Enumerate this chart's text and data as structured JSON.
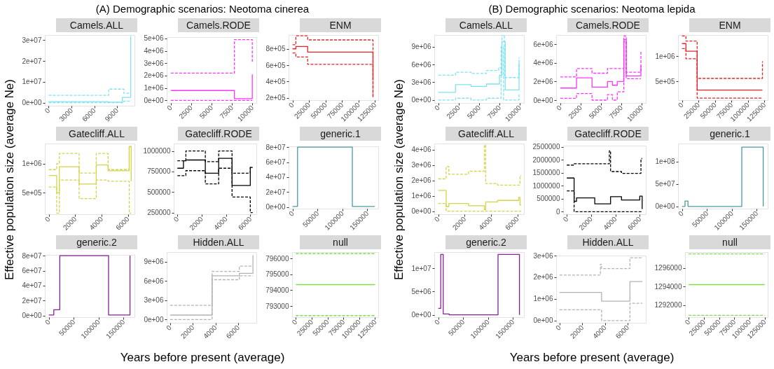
{
  "chart_data": [
    {
      "type": "step",
      "title": "Camels.ALL",
      "annotations": [
        "(A) Demographic scenarios: Neotoma cinerea"
      ],
      "xlabel": "Years before present (average)",
      "ylabel": "Effective population size (average Ne)",
      "xlim": [
        -500,
        11300
      ],
      "xticks": [
        0,
        3000,
        6000,
        9000
      ],
      "ylim": [
        -1500000,
        32500000
      ],
      "yticks": [
        {
          "value": 0,
          "label": "0e+00"
        },
        {
          "value": 10000000,
          "label": "1e+07"
        },
        {
          "value": 20000000,
          "label": "2e+07"
        },
        {
          "value": 30000000,
          "label": "3e+07"
        }
      ],
      "series": [
        {
          "color": "#7fe3ef",
          "line_style": "solid",
          "x": [
            0,
            7800,
            9700,
            10800,
            10800
          ],
          "values": [
            500000,
            200000,
            2500000,
            2500000,
            32000000
          ]
        },
        {
          "color": "#7fe3ef",
          "line_style": "dashed",
          "x": [
            0,
            9900,
            10800
          ],
          "values": [
            0,
            700000,
            700000
          ]
        },
        {
          "color": "#7fe3ef",
          "line_style": "dashed",
          "x": [
            0,
            7900,
            9900,
            10800
          ],
          "values": [
            3500000,
            6500000,
            4500000,
            4500000
          ]
        }
      ]
    },
    {
      "type": "step",
      "title": "Camels.RODE",
      "xlim": [
        -500,
        10500
      ],
      "xticks": [
        0,
        2500,
        5000,
        7500,
        10000
      ],
      "ylim": [
        -200000,
        5100000
      ],
      "yticks": [
        {
          "value": 0,
          "label": "0e+00"
        },
        {
          "value": 1000000,
          "label": "1e+06"
        },
        {
          "value": 2000000,
          "label": "2e+06"
        },
        {
          "value": 3000000,
          "label": "3e+06"
        },
        {
          "value": 4000000,
          "label": "4e+06"
        },
        {
          "value": 5000000,
          "label": "5e+06"
        }
      ],
      "series": [
        {
          "color": "#ff33ff",
          "line_style": "solid",
          "x": [
            0,
            7800,
            10000,
            10000
          ],
          "values": [
            800000,
            150000,
            150000,
            2100000
          ]
        },
        {
          "color": "#ff33ff",
          "line_style": "dashed",
          "x": [
            0,
            10000
          ],
          "values": [
            0,
            0
          ]
        },
        {
          "color": "#ff33ff",
          "line_style": "dashed",
          "x": [
            0,
            7800,
            10000,
            10000
          ],
          "values": [
            2200000,
            4900000,
            4900000,
            3000000
          ]
        }
      ]
    },
    {
      "type": "step",
      "title": "ENM",
      "xlim": [
        -6000,
        130000
      ],
      "xticks": [
        0,
        25000,
        50000,
        75000,
        100000,
        125000
      ],
      "ylim": [
        170000,
        970000
      ],
      "yticks": [
        {
          "value": 200000,
          "label": "2e+05"
        },
        {
          "value": 400000,
          "label": "4e+05"
        },
        {
          "value": 600000,
          "label": "6e+05"
        },
        {
          "value": 800000,
          "label": "8e+05"
        }
      ],
      "series": [
        {
          "color": "#ee2222",
          "line_style": "solid",
          "x": [
            0,
            5000,
            23000,
            122000,
            122000
          ],
          "values": [
            800000,
            830000,
            760000,
            760000,
            420000
          ]
        },
        {
          "color": "#ee2222",
          "line_style": "dashed",
          "x": [
            0,
            5000,
            23000,
            122000,
            122000
          ],
          "values": [
            750000,
            700000,
            610000,
            610000,
            200000
          ]
        },
        {
          "color": "#ee2222",
          "line_style": "dashed",
          "x": [
            0,
            5000,
            23000,
            122000,
            122000
          ],
          "values": [
            850000,
            960000,
            910000,
            910000,
            220000
          ]
        }
      ]
    },
    {
      "type": "step",
      "title": "Gatecliff.ALL",
      "xlim": [
        -300,
        6500
      ],
      "xticks": [
        0,
        2000,
        4000,
        6000
      ],
      "ylim": [
        130000,
        1350000
      ],
      "yticks": [
        {
          "value": 500000,
          "label": "5e+05"
        },
        {
          "value": 1000000,
          "label": "1e+06"
        }
      ],
      "series": [
        {
          "color": "#d4d44a",
          "line_style": "solid",
          "x": [
            0,
            600,
            800,
            2300,
            3600,
            4500,
            6100,
            6250
          ],
          "values": [
            800000,
            500000,
            950000,
            650000,
            980000,
            880000,
            1300000,
            700000
          ]
        },
        {
          "color": "#d4d44a",
          "line_style": "dashed",
          "x": [
            0,
            600,
            800,
            2300,
            3600,
            4500,
            6100,
            6250
          ],
          "values": [
            600000,
            150000,
            720000,
            400000,
            720000,
            700000,
            150000,
            150000
          ]
        },
        {
          "color": "#d4d44a",
          "line_style": "dashed",
          "x": [
            0,
            600,
            800,
            2300,
            3600,
            4500,
            6100,
            6250
          ],
          "values": [
            900000,
            1000000,
            1180000,
            840000,
            1180000,
            900000,
            1300000,
            1300000
          ]
        }
      ]
    },
    {
      "type": "step",
      "title": "Gatecliff.RODE",
      "xlim": [
        -300,
        6500
      ],
      "xticks": [
        0,
        2000,
        4000,
        6000
      ],
      "ylim": [
        230000,
        1090000
      ],
      "yticks": [
        250000,
        500000,
        750000,
        1000000
      ],
      "series": [
        {
          "color": "#000000",
          "line_style": "solid",
          "x": [
            0,
            500,
            700,
            2300,
            3400,
            4500,
            6000,
            6200
          ],
          "values": [
            790000,
            880000,
            890000,
            730000,
            910000,
            580000,
            800000,
            800000
          ]
        },
        {
          "color": "#000000",
          "line_style": "dashed",
          "x": [
            0,
            700,
            2300,
            3400,
            4500,
            6000,
            6200
          ],
          "values": [
            700000,
            760000,
            600000,
            790000,
            440000,
            250000,
            250000
          ]
        },
        {
          "color": "#000000",
          "line_style": "dashed",
          "x": [
            0,
            700,
            2300,
            3400,
            4500,
            6000,
            6200
          ],
          "values": [
            880000,
            1000000,
            870000,
            1000000,
            730000,
            800000,
            800000
          ]
        }
      ]
    },
    {
      "type": "step",
      "title": "generic.1",
      "xlim": [
        -8000,
        172000
      ],
      "xticks": [
        0,
        50000,
        100000,
        150000
      ],
      "ylim": [
        -2000000,
        81000000
      ],
      "yticks": [
        {
          "value": 0,
          "label": "0e+00"
        },
        {
          "value": 20000000,
          "label": "2e+07"
        },
        {
          "value": 40000000,
          "label": "4e+07"
        },
        {
          "value": 60000000,
          "label": "6e+07"
        },
        {
          "value": 80000000,
          "label": "8e+07"
        }
      ],
      "series": [
        {
          "color": "#4b9aa3",
          "line_style": "solid",
          "x": [
            0,
            10000,
            120000,
            165000
          ],
          "values": [
            1000000,
            80000000,
            1000000,
            1000000
          ]
        }
      ]
    },
    {
      "type": "step",
      "title": "generic.2",
      "xlim": [
        -8000,
        172000
      ],
      "xticks": [
        0,
        50000,
        100000,
        150000
      ],
      "ylim": [
        -2000000,
        81000000
      ],
      "yticks": [
        {
          "value": 0,
          "label": "0e+00"
        },
        {
          "value": 20000000,
          "label": "2e+07"
        },
        {
          "value": 40000000,
          "label": "4e+07"
        },
        {
          "value": 60000000,
          "label": "6e+07"
        },
        {
          "value": 80000000,
          "label": "8e+07"
        }
      ],
      "series": [
        {
          "color": "#8a1f9a",
          "line_style": "solid",
          "x": [
            0,
            10000,
            22000,
            120000,
            163000,
            163000
          ],
          "values": [
            1000000,
            8000000,
            80000000,
            1000000,
            1000000,
            80000000
          ]
        }
      ]
    },
    {
      "type": "step",
      "title": "Hidden.ALL",
      "xlim": [
        -300,
        7600
      ],
      "xticks": [
        0,
        2000,
        4000,
        6000
      ],
      "ylim": [
        -500000,
        10500000
      ],
      "yticks": [
        {
          "value": 0,
          "label": "0e+00"
        },
        {
          "value": 3000000,
          "label": "3e+06"
        },
        {
          "value": 6000000,
          "label": "6e+06"
        },
        {
          "value": 9000000,
          "label": "9e+06"
        }
      ],
      "series": [
        {
          "color": "#b3b3b3",
          "line_style": "solid",
          "x": [
            0,
            3700,
            6100,
            7300,
            7300
          ],
          "values": [
            700000,
            6800000,
            7200000,
            7200000,
            10000000
          ]
        },
        {
          "color": "#b3b3b3",
          "line_style": "dashed",
          "x": [
            0,
            3700,
            6100,
            7300
          ],
          "values": [
            0,
            6200000,
            6800000,
            6800000
          ]
        },
        {
          "color": "#b3b3b3",
          "line_style": "dashed",
          "x": [
            0,
            3700,
            6100,
            7300
          ],
          "values": [
            2200000,
            7500000,
            8300000,
            8300000
          ]
        }
      ]
    },
    {
      "type": "step",
      "title": "null",
      "xlim": [
        -6000,
        130000
      ],
      "xticks": [
        0,
        25000,
        50000,
        75000,
        100000,
        125000
      ],
      "ylim": [
        792300,
        796400
      ],
      "yticks": [
        793000,
        794000,
        795000,
        796000
      ],
      "series": [
        {
          "color": "#7be048",
          "line_style": "solid",
          "x": [
            0,
            125000
          ],
          "values": [
            794350,
            794350
          ]
        },
        {
          "color": "#7be048",
          "line_style": "dashed",
          "x": [
            0,
            125000
          ],
          "values": [
            792400,
            792400
          ]
        },
        {
          "color": "#7be048",
          "line_style": "dashed",
          "x": [
            0,
            125000
          ],
          "values": [
            796300,
            796300
          ]
        }
      ]
    },
    {
      "type": "step",
      "title": "Camels.ALL",
      "annotations": [
        "(B) Demographic scenarios: Neotoma lepida"
      ],
      "xlabel": "Years before present (average)",
      "ylabel": "Effective population size (average Ne)",
      "xlim": [
        -500,
        10500
      ],
      "xticks": [
        0,
        2500,
        5000,
        7500,
        10000
      ],
      "ylim": [
        -500000,
        11000000
      ],
      "yticks": [
        {
          "value": 0,
          "label": "0e+00"
        },
        {
          "value": 3000000,
          "label": "3e+06"
        },
        {
          "value": 6000000,
          "label": "6e+06"
        },
        {
          "value": 9000000,
          "label": "9e+06"
        }
      ],
      "series": [
        {
          "color": "#7fe3ef",
          "line_style": "solid",
          "x": [
            0,
            2100,
            4000,
            5900,
            7500,
            7800,
            8200,
            9900,
            9900
          ],
          "values": [
            1300000,
            2600000,
            2300000,
            2700000,
            4200000,
            9900000,
            1700000,
            1700000,
            6300000
          ]
        },
        {
          "color": "#7fe3ef",
          "line_style": "dashed",
          "x": [
            0,
            2100,
            4000,
            5900,
            7700,
            8000,
            9900,
            9900
          ],
          "values": [
            0,
            300000,
            0,
            300000,
            9000000,
            0,
            0,
            1000000
          ]
        },
        {
          "color": "#7fe3ef",
          "line_style": "dashed",
          "x": [
            0,
            2100,
            4000,
            5900,
            7400,
            7800,
            8100,
            9900,
            9900
          ],
          "values": [
            4200000,
            4700000,
            4500000,
            5000000,
            5500000,
            11000000,
            3800000,
            3800000,
            7200000
          ]
        }
      ]
    },
    {
      "type": "step",
      "title": "Camels.RODE",
      "xlim": [
        -500,
        10500
      ],
      "xticks": [
        0,
        2500,
        5000,
        7500,
        10000
      ],
      "ylim": [
        -300000,
        7000000
      ],
      "yticks": [
        {
          "value": 0,
          "label": "0e+00"
        },
        {
          "value": 2000000,
          "label": "2e+06"
        },
        {
          "value": 4000000,
          "label": "4e+06"
        },
        {
          "value": 6000000,
          "label": "6e+06"
        }
      ],
      "series": [
        {
          "color": "#ff33ff",
          "line_style": "solid",
          "x": [
            0,
            2000,
            3900,
            5800,
            6400,
            7000,
            7800,
            8100,
            9900,
            9900
          ],
          "values": [
            1300000,
            2400000,
            1400000,
            2000000,
            1600000,
            2000000,
            6500000,
            2600000,
            2600000,
            3700000
          ]
        },
        {
          "color": "#ff33ff",
          "line_style": "dashed",
          "x": [
            0,
            2000,
            3900,
            5800,
            6400,
            7000,
            7800,
            8100,
            9900
          ],
          "values": [
            200000,
            700000,
            0,
            600000,
            0,
            900000,
            6300000,
            2300000,
            2300000
          ]
        },
        {
          "color": "#ff33ff",
          "line_style": "dashed",
          "x": [
            0,
            2000,
            3900,
            5800,
            7800,
            8100,
            9900,
            9900
          ],
          "values": [
            2500000,
            3400000,
            2900000,
            3400000,
            6900000,
            3000000,
            3000000,
            5300000
          ]
        }
      ]
    },
    {
      "type": "step",
      "title": "ENM",
      "xlim": [
        -6000,
        130000
      ],
      "xticks": [
        0,
        25000,
        50000,
        75000,
        100000,
        125000
      ],
      "ylim": [
        130000,
        1420000
      ],
      "yticks": [
        {
          "value": 500000,
          "label": "5e+05"
        },
        {
          "value": 1000000,
          "label": "1e+06"
        }
      ],
      "series": [
        {
          "color": "#ee2222",
          "line_style": "solid",
          "x": [
            0,
            6000,
            23000,
            122000
          ],
          "values": [
            1250000,
            1100000,
            330000,
            330000
          ]
        },
        {
          "color": "#ee2222",
          "line_style": "dashed",
          "x": [
            0,
            6000,
            23000,
            122000
          ],
          "values": [
            1150000,
            950000,
            170000,
            170000
          ]
        },
        {
          "color": "#ee2222",
          "line_style": "dashed",
          "x": [
            0,
            6000,
            23000,
            122000,
            122000
          ],
          "values": [
            1400000,
            1300000,
            560000,
            560000,
            900000
          ]
        }
      ]
    },
    {
      "type": "step",
      "title": "Gatecliff.ALL",
      "xlim": [
        -300,
        6500
      ],
      "xticks": [
        0,
        2000,
        4000,
        6000
      ],
      "ylim": [
        -200000,
        4400000
      ],
      "yticks": [
        {
          "value": 0,
          "label": "0e+00"
        },
        {
          "value": 1000000,
          "label": "1e+06"
        },
        {
          "value": 2000000,
          "label": "2e+06"
        },
        {
          "value": 3000000,
          "label": "3e+06"
        },
        {
          "value": 4000000,
          "label": "4e+06"
        }
      ],
      "series": [
        {
          "color": "#d4d44a",
          "line_style": "solid",
          "x": [
            0,
            600,
            800,
            2300,
            3500,
            3600,
            4500,
            6100,
            6200,
            6300
          ],
          "values": [
            1350000,
            300000,
            500000,
            350000,
            100000,
            600000,
            700000,
            900000,
            400000,
            400000
          ]
        },
        {
          "color": "#d4d44a",
          "line_style": "dashed",
          "x": [
            0,
            600,
            6300
          ],
          "values": [
            500000,
            0,
            0
          ]
        },
        {
          "color": "#d4d44a",
          "line_style": "dashed",
          "x": [
            0,
            600,
            800,
            2300,
            3500,
            3600,
            4500,
            6200,
            6300
          ],
          "values": [
            2100000,
            2900000,
            2400000,
            2600000,
            4300000,
            1800000,
            1700000,
            2300000,
            2300000
          ]
        }
      ]
    },
    {
      "type": "step",
      "title": "Gatecliff.RODE",
      "xlim": [
        -300,
        6500
      ],
      "xticks": [
        0,
        2000,
        4000,
        6000
      ],
      "ylim": [
        -100000,
        2550000
      ],
      "yticks": [
        0,
        500000,
        1000000,
        1500000,
        2000000,
        2500000
      ],
      "series": [
        {
          "color": "#000000",
          "line_style": "solid",
          "x": [
            0,
            600,
            800,
            2300,
            3600,
            4500,
            6000,
            6200,
            6200
          ],
          "values": [
            1300000,
            400000,
            530000,
            300000,
            580000,
            450000,
            600000,
            600000,
            100000
          ]
        },
        {
          "color": "#000000",
          "line_style": "dashed",
          "x": [
            0,
            600,
            6200
          ],
          "values": [
            800000,
            0,
            0
          ]
        },
        {
          "color": "#000000",
          "line_style": "dashed",
          "x": [
            0,
            600,
            3500,
            3600,
            4500,
            6100,
            6200
          ],
          "values": [
            1800000,
            1850000,
            2350000,
            1550000,
            1480000,
            2050000,
            2050000
          ]
        }
      ]
    },
    {
      "type": "step",
      "title": "generic.1",
      "xlim": [
        -8000,
        172000
      ],
      "xticks": [
        0,
        50000,
        100000,
        150000
      ],
      "ylim": [
        -5000000,
        140000000
      ],
      "yticks": [
        {
          "value": 0,
          "label": "0e+00"
        },
        {
          "value": 50000000,
          "label": "5e+07"
        },
        {
          "value": 100000000,
          "label": "1e+08"
        }
      ],
      "series": [
        {
          "color": "#4b9aa3",
          "line_style": "solid",
          "x": [
            0,
            6000,
            12000,
            120000,
            163000,
            163000
          ],
          "values": [
            0,
            12000000,
            0,
            132000000,
            132000000,
            0
          ]
        }
      ]
    },
    {
      "type": "step",
      "title": "generic.2",
      "xlim": [
        -8000,
        172000
      ],
      "xticks": [
        0,
        50000,
        100000,
        150000
      ],
      "ylim": [
        -500000,
        13500000
      ],
      "yticks": [
        {
          "value": 0,
          "label": "0e+00"
        },
        {
          "value": 5000000,
          "label": "5e+06"
        },
        {
          "value": 10000000,
          "label": "1e+07"
        }
      ],
      "series": [
        {
          "color": "#8a1f9a",
          "line_style": "solid",
          "x": [
            0,
            5000,
            10000,
            22000,
            120000,
            163000,
            163000
          ],
          "values": [
            1400000,
            13000000,
            200000,
            0,
            13000000,
            13000000,
            0
          ]
        }
      ]
    },
    {
      "type": "step",
      "title": "Hidden.ALL",
      "xlim": [
        -300,
        7600
      ],
      "xticks": [
        0,
        2000,
        4000,
        6000
      ],
      "ylim": [
        -100000,
        3000000
      ],
      "yticks": [
        {
          "value": 0,
          "label": "0e+00"
        },
        {
          "value": 1000000,
          "label": "1e+06"
        },
        {
          "value": 2000000,
          "label": "2e+06"
        },
        {
          "value": 3000000,
          "label": "3e+06"
        }
      ],
      "series": [
        {
          "color": "#b3b3b3",
          "line_style": "solid",
          "x": [
            0,
            3700,
            6200,
            7300
          ],
          "values": [
            1300000,
            900000,
            1800000,
            1800000
          ]
        },
        {
          "color": "#b3b3b3",
          "line_style": "dashed",
          "x": [
            0,
            3700,
            6200,
            7300
          ],
          "values": [
            500000,
            0,
            800000,
            800000
          ]
        },
        {
          "color": "#b3b3b3",
          "line_style": "dashed",
          "x": [
            0,
            3600,
            3700,
            6200,
            7300
          ],
          "values": [
            2100000,
            2600000,
            2400000,
            2900000,
            2900000
          ]
        }
      ]
    },
    {
      "type": "step",
      "title": "null",
      "xlim": [
        -6000,
        130000
      ],
      "xticks": [
        0,
        25000,
        50000,
        75000,
        100000,
        125000
      ],
      "ylim": [
        1290700,
        1297700
      ],
      "yticks": [
        1292000,
        1294000,
        1296000
      ],
      "series": [
        {
          "color": "#7be048",
          "line_style": "solid",
          "x": [
            0,
            125000
          ],
          "values": [
            1294200,
            1294200
          ]
        },
        {
          "color": "#7be048",
          "line_style": "dashed",
          "x": [
            0,
            125000
          ],
          "values": [
            1290900,
            1290900
          ]
        },
        {
          "color": "#7be048",
          "line_style": "dashed",
          "x": [
            0,
            125000
          ],
          "values": [
            1297500,
            1297500
          ]
        }
      ]
    }
  ]
}
